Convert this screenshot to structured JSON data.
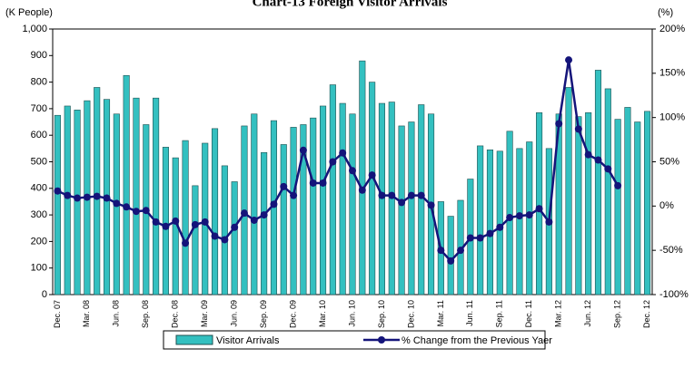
{
  "chart_data": {
    "type": "bar-line",
    "title": "Chart-13 Foreign Visitor Arrivals",
    "y_label": "(K People)",
    "y2_label": "(%)",
    "categories": [
      "Dec. 07",
      null,
      null,
      "Mar. 08",
      null,
      null,
      "Jun. 08",
      null,
      null,
      "Sep. 08",
      null,
      null,
      "Dec. 08",
      null,
      null,
      "Mar. 09",
      null,
      null,
      "Jun. 09",
      null,
      null,
      "Sep. 09",
      null,
      null,
      "Dec. 09",
      null,
      null,
      "Mar. 10",
      null,
      null,
      "Jun. 10",
      null,
      null,
      "Sep. 10",
      null,
      null,
      "Dec. 10",
      null,
      null,
      "Mar. 11",
      null,
      null,
      "Jun. 11",
      null,
      null,
      "Sep. 11",
      null,
      null,
      "Dec. 11",
      null,
      null,
      "Mar. 12",
      null,
      null,
      "Jun. 12",
      null,
      null,
      "Sep. 12",
      null,
      null,
      "Dec. 12"
    ],
    "series": [
      {
        "name": "Visitor Arrivals",
        "color": "#33c0c0",
        "axis": "y",
        "values": [
          675,
          710,
          695,
          730,
          780,
          735,
          680,
          825,
          740,
          640,
          740,
          555,
          515,
          580,
          410,
          570,
          625,
          485,
          425,
          635,
          680,
          535,
          655,
          565,
          630,
          640,
          665,
          710,
          790,
          720,
          680,
          880,
          800,
          720,
          725,
          635,
          650,
          715,
          680,
          350,
          295,
          355,
          435,
          560,
          545,
          540,
          615,
          550,
          575,
          685,
          550,
          680,
          780,
          670,
          685,
          845,
          775,
          660,
          705,
          650,
          690
        ]
      },
      {
        "name": "% Change from the Previous Yaer",
        "color": "#14147a",
        "axis": "y2",
        "values": [
          17,
          12,
          9,
          10,
          11,
          9,
          3,
          -1,
          -6,
          -5,
          -18,
          -23,
          -17,
          -42,
          -21,
          -18,
          -34,
          -38,
          -24,
          -8,
          -16,
          -10,
          2,
          22,
          12,
          63,
          26,
          26,
          50,
          60,
          40,
          18,
          35,
          12,
          12,
          4,
          12,
          12,
          1,
          -50,
          -62,
          -50,
          -36,
          -36,
          -31,
          -24,
          -13,
          -11,
          -10,
          -3,
          -18,
          93,
          165,
          87,
          58,
          52,
          42,
          23,
          null,
          null,
          null
        ]
      }
    ],
    "ylim": [
      0,
      1000
    ],
    "yticks": [
      0,
      100,
      200,
      300,
      400,
      500,
      600,
      700,
      800,
      900,
      {
        "value": 1000,
        "label": "1,000"
      }
    ],
    "y2lim": [
      -100,
      200
    ],
    "y2ticks": [
      {
        "value": -100,
        "label": "-100%"
      },
      {
        "value": -50,
        "label": "-50%"
      },
      {
        "value": 0,
        "label": "0%"
      },
      {
        "value": 50,
        "label": "50%"
      },
      {
        "value": 100,
        "label": "100%"
      },
      {
        "value": 150,
        "label": "150%"
      },
      {
        "value": 200,
        "label": "200%"
      }
    ],
    "grid": false,
    "legend": "bottom"
  }
}
